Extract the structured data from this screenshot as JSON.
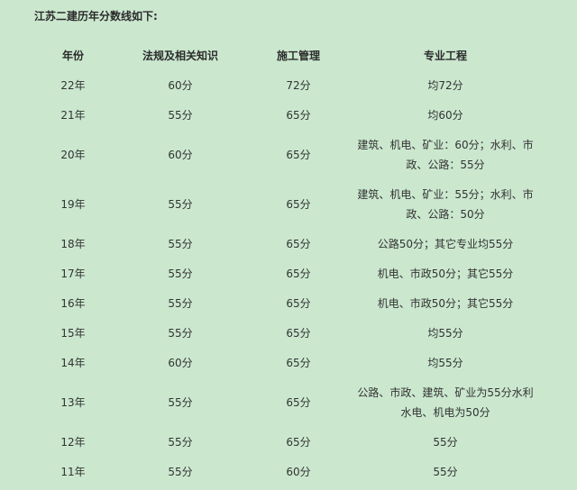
{
  "title": "江苏二建历年分数线如下:",
  "table": {
    "headers": [
      "年份",
      "法规及相关知识",
      "施工管理",
      "专业工程"
    ],
    "rows": [
      [
        "22年",
        "60分",
        "72分",
        "均72分"
      ],
      [
        "21年",
        "55分",
        "65分",
        "均60分"
      ],
      [
        "20年",
        "60分",
        "65分",
        "建筑、机电、矿业：60分；水利、市政、公路：55分"
      ],
      [
        "19年",
        "55分",
        "65分",
        "建筑、机电、矿业：55分；水利、市政、公路：50分"
      ],
      [
        "18年",
        "55分",
        "65分",
        "公路50分；其它专业均55分"
      ],
      [
        "17年",
        "55分",
        "65分",
        "机电、市政50分；其它55分"
      ],
      [
        "16年",
        "55分",
        "65分",
        "机电、市政50分；其它55分"
      ],
      [
        "15年",
        "55分",
        "65分",
        "均55分"
      ],
      [
        "14年",
        "60分",
        "65分",
        "均55分"
      ],
      [
        "13年",
        "55分",
        "65分",
        "公路、市政、建筑、矿业为55分水利水电、机电为50分"
      ],
      [
        "12年",
        "55分",
        "65分",
        "55分"
      ],
      [
        "11年",
        "55分",
        "60分",
        "55分"
      ]
    ]
  },
  "colors": {
    "background": "#cbe8cf",
    "text": "#333333"
  }
}
